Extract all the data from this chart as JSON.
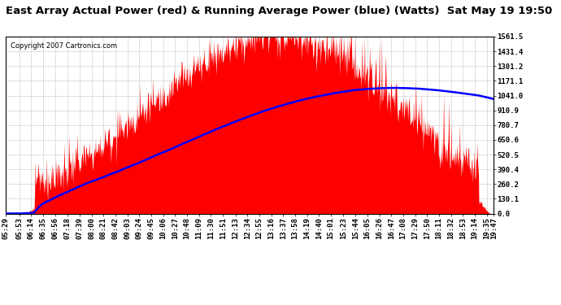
{
  "title": "East Array Actual Power (red) & Running Average Power (blue) (Watts)  Sat May 19 19:50",
  "copyright": "Copyright 2007 Cartronics.com",
  "ylabel_right_ticks": [
    0.0,
    130.1,
    260.2,
    390.4,
    520.5,
    650.6,
    780.7,
    910.9,
    1041.0,
    1171.1,
    1301.2,
    1431.4,
    1561.5
  ],
  "ymax": 1561.5,
  "ymin": 0.0,
  "bg_color": "#ffffff",
  "plot_bg_color": "#ffffff",
  "grid_color": "#c8c8c8",
  "actual_color": "#ff0000",
  "avg_color": "#0000ff",
  "x_labels": [
    "05:29",
    "05:53",
    "06:14",
    "06:35",
    "06:56",
    "07:18",
    "07:39",
    "08:00",
    "08:21",
    "08:42",
    "09:03",
    "09:24",
    "09:45",
    "10:06",
    "10:27",
    "10:48",
    "11:09",
    "11:30",
    "11:51",
    "12:13",
    "12:34",
    "12:55",
    "13:16",
    "13:37",
    "13:58",
    "14:19",
    "14:40",
    "15:01",
    "15:23",
    "15:44",
    "16:05",
    "16:26",
    "16:47",
    "17:08",
    "17:29",
    "17:50",
    "18:11",
    "18:32",
    "18:53",
    "19:14",
    "19:35",
    "19:47"
  ],
  "title_fontsize": 9.5,
  "tick_label_fontsize": 6.5,
  "copyright_fontsize": 6.0
}
